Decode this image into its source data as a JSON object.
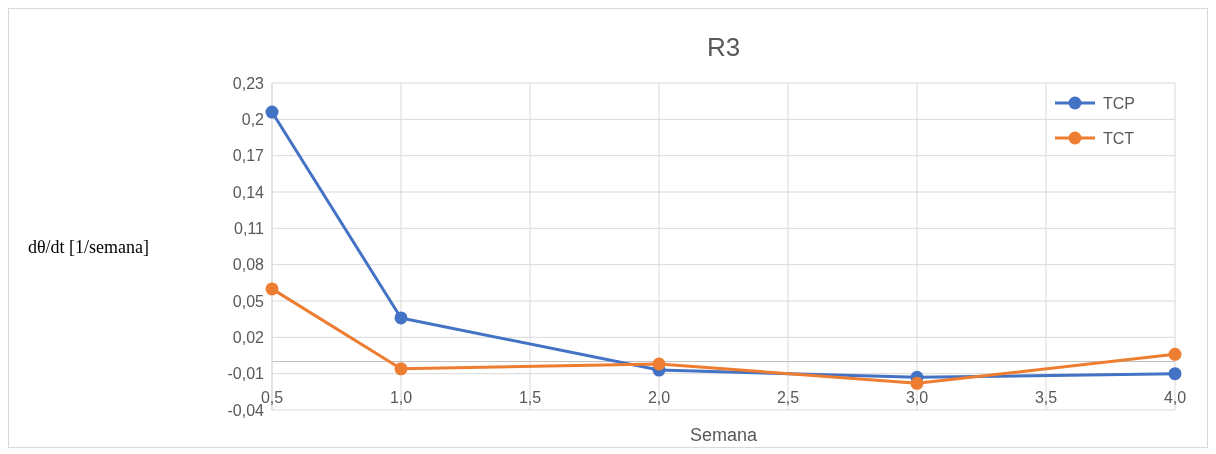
{
  "chart_data": {
    "type": "line",
    "title": "R3",
    "xlabel": "Semana",
    "ylabel": "dθ/dt [1/semana]",
    "x": [
      0.5,
      1.0,
      2.0,
      3.0,
      4.0
    ],
    "series": [
      {
        "name": "TCP",
        "color": "#4472c4",
        "values": [
          0.206,
          0.036,
          -0.007,
          -0.013,
          -0.01
        ]
      },
      {
        "name": "TCT",
        "color": "#ed7d31",
        "values": [
          0.06,
          -0.006,
          -0.002,
          -0.018,
          0.006
        ]
      }
    ],
    "xlim": [
      0.5,
      4.0
    ],
    "xticks": [
      {
        "value": 0.5,
        "label": "0,5"
      },
      {
        "value": 1.0,
        "label": "1,0"
      },
      {
        "value": 1.5,
        "label": "1,5"
      },
      {
        "value": 2.0,
        "label": "2,0"
      },
      {
        "value": 2.5,
        "label": "2,5"
      },
      {
        "value": 3.0,
        "label": "3,0"
      },
      {
        "value": 3.5,
        "label": "3,5"
      },
      {
        "value": 4.0,
        "label": "4,0"
      }
    ],
    "ylim": [
      -0.04,
      0.23
    ],
    "yticks": [
      {
        "value": -0.04,
        "label": "-0,04"
      },
      {
        "value": -0.01,
        "label": "-0,01"
      },
      {
        "value": 0.02,
        "label": "0,02"
      },
      {
        "value": 0.05,
        "label": "0,05"
      },
      {
        "value": 0.08,
        "label": "0,08"
      },
      {
        "value": 0.11,
        "label": "0,11"
      },
      {
        "value": 0.14,
        "label": "0,14"
      },
      {
        "value": 0.17,
        "label": "0,17"
      },
      {
        "value": 0.2,
        "label": "0,2"
      },
      {
        "value": 0.23,
        "label": "0,23"
      }
    ],
    "grid": true,
    "legend": "top right",
    "marker": "circle",
    "line_style": "solid"
  }
}
